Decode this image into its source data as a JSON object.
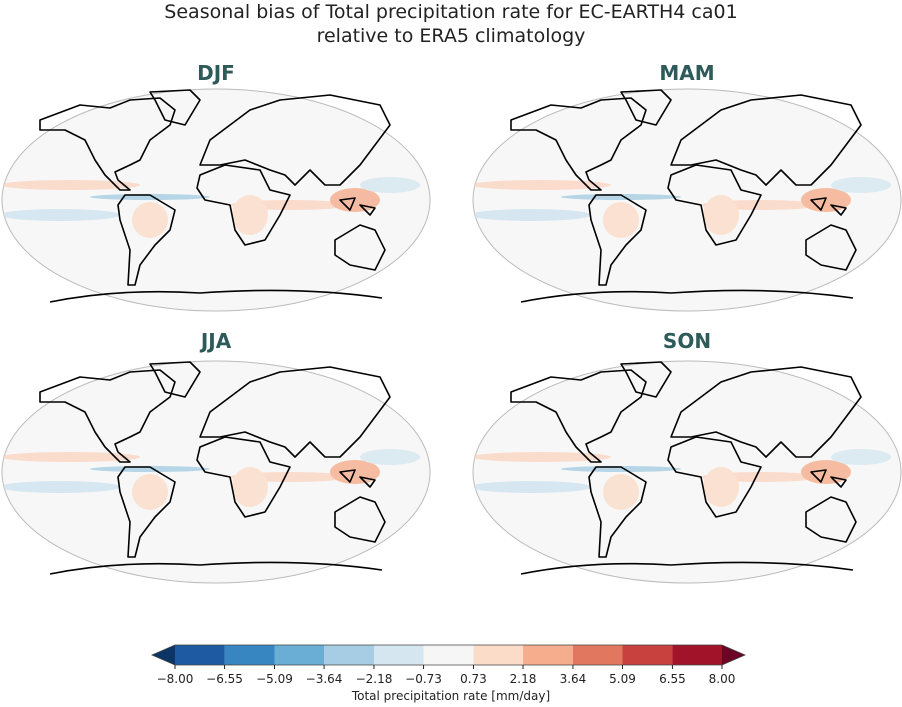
{
  "title": "Seasonal bias of Total precipitation rate for EC-EARTH4 ca01",
  "subtitle": "relative to ERA5 climatology",
  "panels": [
    {
      "label": "DJF"
    },
    {
      "label": "MAM"
    },
    {
      "label": "JJA"
    },
    {
      "label": "SON"
    }
  ],
  "colorbar": {
    "label": "Total precipitation rate [mm/day]",
    "ticks": [
      {
        "value": -8.0,
        "label": "−8.00"
      },
      {
        "value": -6.55,
        "label": "−6.55"
      },
      {
        "value": -5.09,
        "label": "−5.09"
      },
      {
        "value": -3.64,
        "label": "−3.64"
      },
      {
        "value": -2.18,
        "label": "−2.18"
      },
      {
        "value": -0.73,
        "label": "−0.73"
      },
      {
        "value": 0.73,
        "label": "0.73"
      },
      {
        "value": 2.18,
        "label": "2.18"
      },
      {
        "value": 3.64,
        "label": "3.64"
      },
      {
        "value": 5.09,
        "label": "5.09"
      },
      {
        "value": 6.55,
        "label": "6.55"
      },
      {
        "value": 8.0,
        "label": "8.00"
      }
    ],
    "colors": [
      "#1d5aa2",
      "#3785c1",
      "#6aaed6",
      "#a6cde3",
      "#d5e6f0",
      "#f6f6f6",
      "#fbdcc9",
      "#f5ad8d",
      "#e2775f",
      "#c8413e",
      "#a01328"
    ],
    "under_color": "#0c3466",
    "over_color": "#6a0624"
  }
}
